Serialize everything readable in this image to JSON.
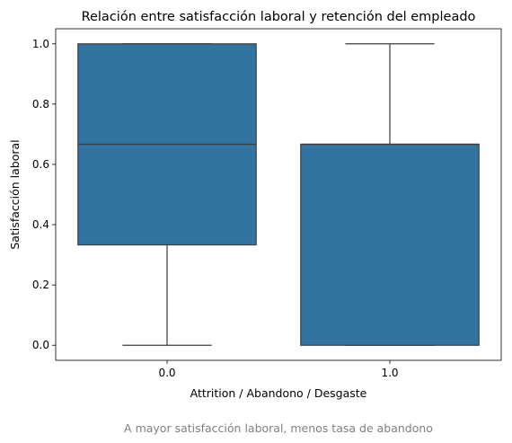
{
  "chart_data": {
    "type": "box",
    "title": "Relación entre satisfacción laboral y retención del empleado",
    "xlabel": "Attrition / Abandono / Desgaste",
    "ylabel": "Satisfacción laboral",
    "caption": "A mayor satisfacción laboral, menos tasa de abandono",
    "categories": [
      "0.0",
      "1.0"
    ],
    "ylim": [
      -0.05,
      1.05
    ],
    "yticks": [
      0.0,
      0.2,
      0.4,
      0.6,
      0.8,
      1.0
    ],
    "ytick_labels": [
      "0.0",
      "0.2",
      "0.4",
      "0.6",
      "0.8",
      "1.0"
    ],
    "boxes": [
      {
        "category": "0.0",
        "whisker_low": 0.0,
        "q1": 0.333,
        "median": 0.667,
        "q3": 1.0,
        "whisker_high": 1.0
      },
      {
        "category": "1.0",
        "whisker_low": 0.0,
        "q1": 0.0,
        "median": 0.667,
        "q3": 0.667,
        "whisker_high": 1.0
      }
    ],
    "box_color": "#3274a1",
    "line_color": "#3d3d3d",
    "grid": false,
    "legend": "none"
  }
}
